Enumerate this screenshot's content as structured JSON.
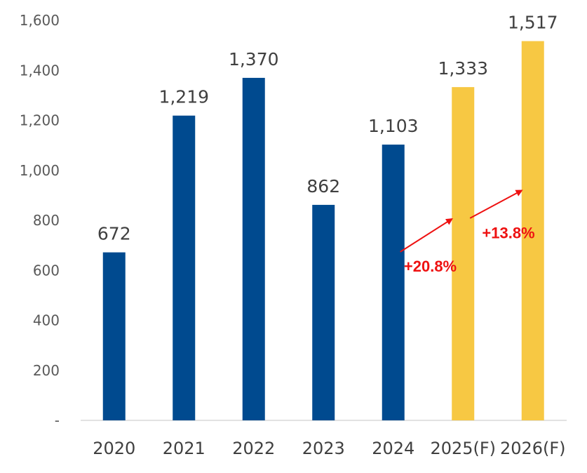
{
  "chart_data": {
    "type": "bar",
    "categories": [
      "2020",
      "2021",
      "2022",
      "2023",
      "2024",
      "2025(F)",
      "2026(F)"
    ],
    "values": [
      672,
      1219,
      1370,
      862,
      1103,
      1333,
      1517
    ],
    "data_labels": [
      "672",
      "1,219",
      "1,370",
      "862",
      "1,103",
      "1,333",
      "1,517"
    ],
    "forecast": [
      false,
      false,
      false,
      false,
      false,
      true,
      true
    ],
    "ylim": [
      0,
      1600
    ],
    "yticks": [
      {
        "value": 0,
        "label": "-"
      },
      {
        "value": 200,
        "label": "200"
      },
      {
        "value": 400,
        "label": "400"
      },
      {
        "value": 600,
        "label": "600"
      },
      {
        "value": 800,
        "label": "800"
      },
      {
        "value": 1000,
        "label": "1,000"
      },
      {
        "value": 1200,
        "label": "1,200"
      },
      {
        "value": 1400,
        "label": "1,400"
      },
      {
        "value": 1600,
        "label": "1,600"
      }
    ],
    "title": "",
    "xlabel": "",
    "ylabel": "",
    "grid": false,
    "legend": "none",
    "colors": {
      "actual": "#004a8f",
      "forecast": "#f7c843",
      "annotation": "#ee1111"
    },
    "annotations": [
      {
        "text": "+20.8%",
        "from_category": "2024",
        "to_category": "2025(F)"
      },
      {
        "text": "+13.8%",
        "from_category": "2025(F)",
        "to_category": "2026(F)"
      }
    ]
  }
}
